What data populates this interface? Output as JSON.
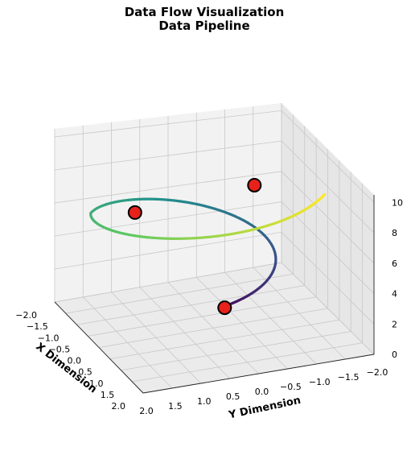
{
  "chart_data": {
    "type": "line3d",
    "title": "Data Flow Visualization",
    "subtitle": "Data Pipeline",
    "xlabel": "X Dimension",
    "ylabel": "Y Dimension",
    "zlabel": "",
    "xlim": [
      -2.2,
      2.2
    ],
    "ylim": [
      -2.2,
      2.2
    ],
    "zlim": [
      0,
      10.5
    ],
    "x_ticks": [
      "2.0",
      "1.5",
      "1.0",
      "0.5",
      "0.0",
      "−0.5",
      "−1.0",
      "−1.5",
      "−2.0"
    ],
    "y_ticks": [
      "2.0",
      "1.5",
      "1.0",
      "0.5",
      "0.0",
      "−0.5",
      "−1.0",
      "−1.5",
      "−2.0"
    ],
    "z_ticks": [
      "0",
      "2",
      "4",
      "6",
      "8",
      "10"
    ],
    "grid": true,
    "colormap": [
      "#440154",
      "#3b528b",
      "#21918c",
      "#5ec962",
      "#fde725"
    ],
    "curve": {
      "description_of_data": "helix",
      "radius_start": 0.5,
      "radius_end": 2.0,
      "turns": 1.0,
      "z_start": 2.0,
      "z_end": 10.0
    },
    "markers": [
      {
        "x": 0.5,
        "y": 0.0,
        "z": 2.0
      },
      {
        "x": -1.2,
        "y": 0.9,
        "z": 6.0
      },
      {
        "x": 0.8,
        "y": -0.4,
        "z": 10.0
      }
    ],
    "marker_color": "#e8211a"
  }
}
